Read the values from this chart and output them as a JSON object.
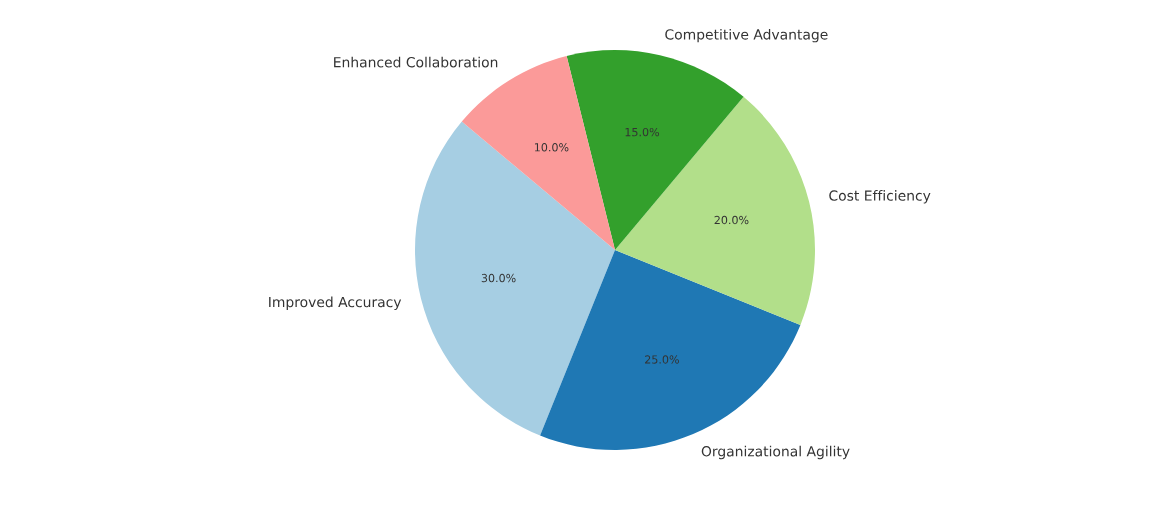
{
  "chart_data": {
    "type": "pie",
    "categories": [
      "Improved Accuracy",
      "Organizational Agility",
      "Cost Efficiency",
      "Competitive Advantage",
      "Enhanced Collaboration"
    ],
    "values": [
      30,
      25,
      20,
      15,
      10
    ],
    "value_labels": [
      "30.0%",
      "25.0%",
      "20.0%",
      "15.0%",
      "10.0%"
    ],
    "colors": [
      "#a6cee3",
      "#1f78b4",
      "#b2df8a",
      "#33a02c",
      "#fb9a99"
    ]
  }
}
